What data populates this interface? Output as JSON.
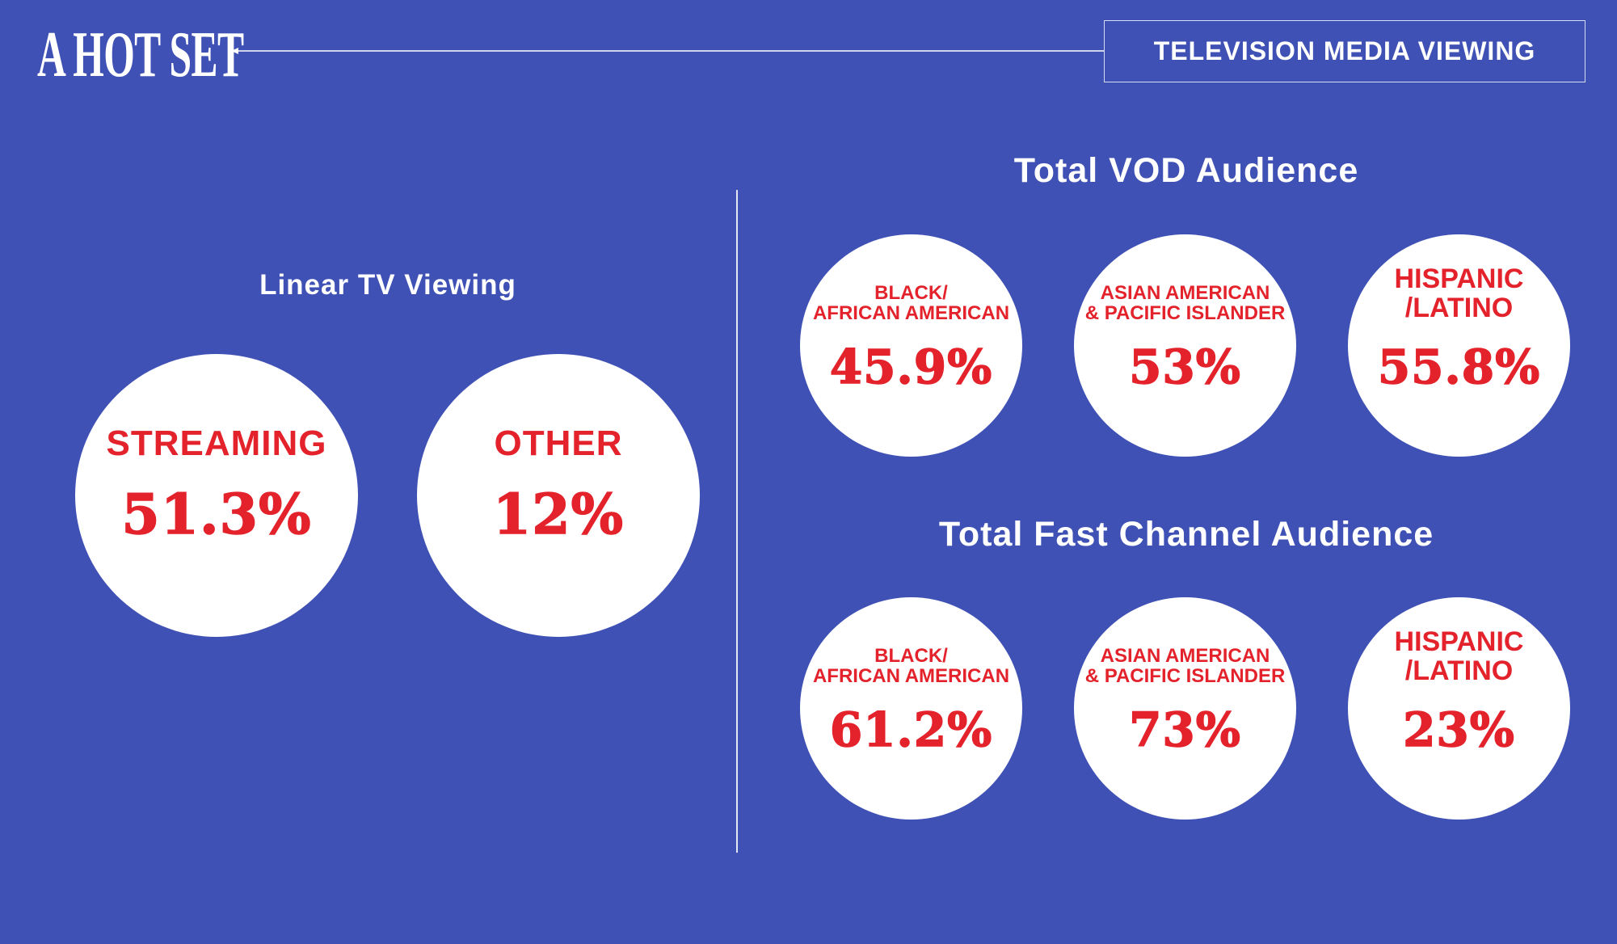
{
  "brand": {
    "name": "A HOT SET"
  },
  "header": {
    "section_title": "TELEVISION MEDIA VIEWING"
  },
  "linear_tv": {
    "heading": "Linear TV Viewing",
    "items": [
      {
        "label": "STREAMING",
        "value": "51.3%"
      },
      {
        "label": "OTHER",
        "value": "12%"
      }
    ]
  },
  "vod": {
    "heading": "Total VOD Audience",
    "items": [
      {
        "label": "BLACK/\nAFRICAN AMERICAN",
        "value": "45.9%"
      },
      {
        "label": "ASIAN AMERICAN\n& PACIFIC ISLANDER",
        "value": "53%"
      },
      {
        "label": "HISPANIC\n/LATINO",
        "value": "55.8%"
      }
    ]
  },
  "fast": {
    "heading": "Total Fast Channel Audience",
    "items": [
      {
        "label": "BLACK/\nAFRICAN AMERICAN",
        "value": "61.2%"
      },
      {
        "label": "ASIAN AMERICAN\n& PACIFIC ISLANDER",
        "value": "73%"
      },
      {
        "label": "HISPANIC\n/LATINO",
        "value": "23%"
      }
    ]
  },
  "colors": {
    "background": "#3f51b5",
    "circle": "#ffffff",
    "accent_red": "#e3222b",
    "text": "#ffffff"
  },
  "icons": {
    "back": "left-arrow-icon"
  }
}
